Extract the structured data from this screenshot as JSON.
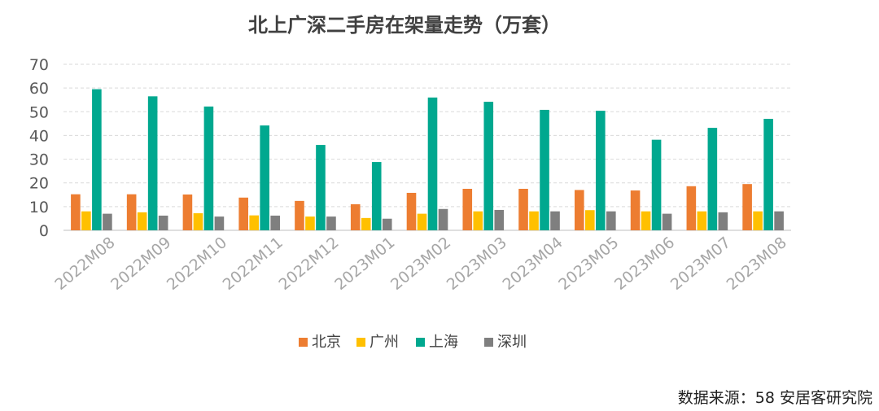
{
  "chart_data": {
    "type": "bar",
    "title": "北上广深二手房在架量走势（万套）",
    "categories": [
      "2022M08",
      "2022M09",
      "2022M10",
      "2022M11",
      "2022M12",
      "2023M01",
      "2023M02",
      "2023M03",
      "2023M04",
      "2023M05",
      "2023M06",
      "2023M07",
      "2023M08"
    ],
    "series": [
      {
        "name": "北京",
        "color": "#ED7D31",
        "values": [
          15.2,
          15.2,
          15.1,
          13.8,
          12.4,
          11.0,
          15.8,
          17.5,
          17.5,
          17.0,
          16.8,
          18.6,
          19.5
        ]
      },
      {
        "name": "广州",
        "color": "#FFC000",
        "values": [
          8.0,
          7.6,
          7.2,
          6.3,
          5.8,
          5.2,
          7.0,
          8.0,
          8.0,
          8.5,
          8.0,
          8.0,
          8.0
        ]
      },
      {
        "name": "上海",
        "color": "#00A88F",
        "values": [
          59.5,
          56.5,
          52.2,
          44.2,
          36.0,
          28.8,
          56.0,
          54.2,
          50.8,
          50.4,
          38.2,
          43.2,
          47.0
        ]
      },
      {
        "name": "深圳",
        "color": "#7F7F7F",
        "values": [
          7.0,
          6.2,
          5.8,
          6.2,
          5.8,
          4.9,
          9.0,
          8.6,
          8.0,
          8.0,
          7.0,
          7.6,
          8.0
        ]
      }
    ],
    "ylim": [
      0,
      70
    ],
    "yticks": [
      0,
      10,
      20,
      30,
      40,
      50,
      60,
      70
    ],
    "grid": true,
    "legend": "bottom"
  },
  "footer": {
    "source": "数据来源：58 安居客研究院"
  }
}
